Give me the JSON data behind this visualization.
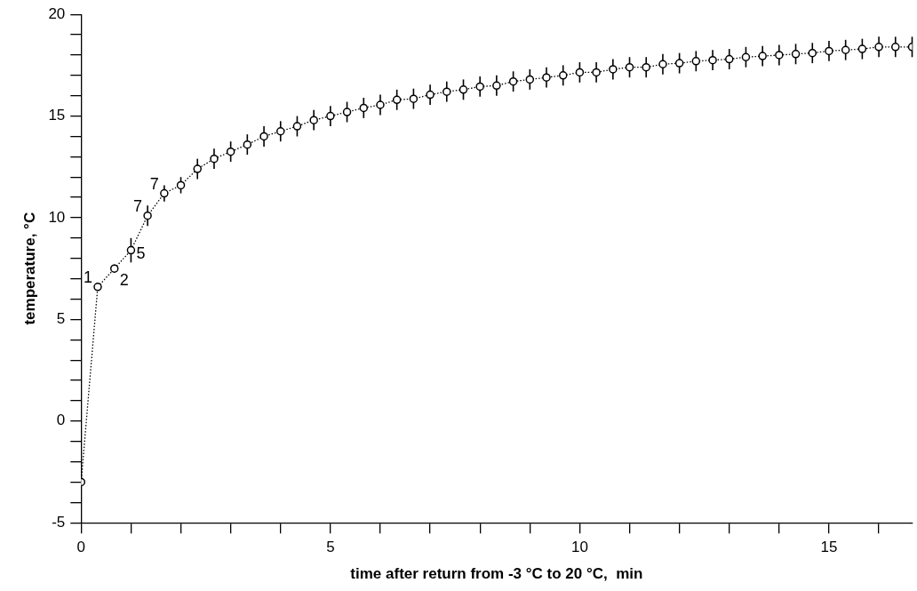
{
  "chart_data": {
    "type": "line",
    "xlabel": "time after return from -3 °C to 20 °C,  min",
    "ylabel": "temperature, °C",
    "x": [
      0,
      0.333,
      0.667,
      1,
      1.333,
      1.667,
      2,
      2.333,
      2.667,
      3,
      3.333,
      3.667,
      4,
      4.333,
      4.667,
      5,
      5.333,
      5.667,
      6,
      6.333,
      6.667,
      7,
      7.333,
      7.667,
      8,
      8.333,
      8.667,
      9,
      9.333,
      9.667,
      10,
      10.333,
      10.667,
      11,
      11.333,
      11.667,
      12,
      12.333,
      12.667,
      13,
      13.333,
      13.667,
      14,
      14.333,
      14.667,
      15,
      15.333,
      15.667,
      16,
      16.333,
      16.667
    ],
    "series": [
      {
        "color": "#000000",
        "values": [
          -3,
          6.6,
          7.5,
          8.4,
          10.1,
          11.2,
          11.6,
          12.4,
          12.9,
          13.25,
          13.6,
          14.0,
          14.25,
          14.5,
          14.8,
          15.0,
          15.2,
          15.4,
          15.55,
          15.8,
          15.85,
          16.05,
          16.2,
          16.3,
          16.45,
          16.5,
          16.7,
          16.8,
          16.9,
          17.0,
          17.15,
          17.15,
          17.3,
          17.4,
          17.4,
          17.55,
          17.6,
          17.7,
          17.75,
          17.8,
          17.9,
          17.95,
          18.0,
          18.05,
          18.1,
          18.2,
          18.25,
          18.3,
          18.4,
          18.4,
          18.4
        ],
        "errors": [
          null,
          null,
          0.2,
          0.6,
          0.5,
          0.4,
          0.4,
          0.5,
          0.5,
          0.5,
          0.5,
          0.5,
          0.5,
          0.5,
          0.5,
          0.5,
          0.5,
          0.5,
          0.5,
          0.5,
          0.5,
          0.5,
          0.5,
          0.5,
          0.5,
          0.5,
          0.5,
          0.5,
          0.5,
          0.5,
          0.5,
          0.5,
          0.5,
          0.5,
          0.5,
          0.5,
          0.5,
          0.5,
          0.5,
          0.5,
          0.5,
          0.5,
          0.5,
          0.5,
          0.5,
          0.5,
          0.5,
          0.5,
          0.5,
          0.5,
          0.5
        ]
      }
    ],
    "annotations": [
      {
        "text": "1",
        "x": 0.333,
        "y": 6.6
      },
      {
        "text": "2",
        "x": 0.667,
        "y": 7.5
      },
      {
        "text": "5",
        "x": 1,
        "y": 8.4
      },
      {
        "text": "7",
        "x": 1.333,
        "y": 10.1
      },
      {
        "text": "7",
        "x": 1.667,
        "y": 11.2
      }
    ],
    "xlim": [
      0,
      16.667
    ],
    "ylim": [
      -5,
      20
    ],
    "xticks": [
      0,
      {
        "value": 1,
        "label": null
      },
      {
        "value": 2,
        "label": null
      },
      {
        "value": 3,
        "label": null
      },
      {
        "value": 4,
        "label": null
      },
      5,
      {
        "value": 6,
        "label": null
      },
      {
        "value": 7,
        "label": null
      },
      {
        "value": 8,
        "label": null
      },
      {
        "value": 9,
        "label": null
      },
      10,
      {
        "value": 11,
        "label": null
      },
      {
        "value": 12,
        "label": null
      },
      {
        "value": 13,
        "label": null
      },
      {
        "value": 14,
        "label": null
      },
      15,
      {
        "value": 16,
        "label": null
      }
    ],
    "yticks": [
      -5,
      {
        "value": -4,
        "label": null
      },
      {
        "value": -3,
        "label": null
      },
      {
        "value": -2,
        "label": null
      },
      {
        "value": -1,
        "label": null
      },
      0,
      {
        "value": 1,
        "label": null
      },
      {
        "value": 2,
        "label": null
      },
      {
        "value": 3,
        "label": null
      },
      {
        "value": 4,
        "label": null
      },
      5,
      {
        "value": 6,
        "label": null
      },
      {
        "value": 7,
        "label": null
      },
      {
        "value": 8,
        "label": null
      },
      {
        "value": 9,
        "label": null
      },
      10,
      {
        "value": 11,
        "label": null
      },
      {
        "value": 12,
        "label": null
      },
      {
        "value": 13,
        "label": null
      },
      {
        "value": 14,
        "label": null
      },
      15,
      {
        "value": 16,
        "label": null
      },
      {
        "value": 17,
        "label": null
      },
      {
        "value": 18,
        "label": null
      },
      {
        "value": 19,
        "label": null
      },
      20
    ],
    "grid": false,
    "legend": false,
    "marker": "circle",
    "line_style": "dotted"
  }
}
